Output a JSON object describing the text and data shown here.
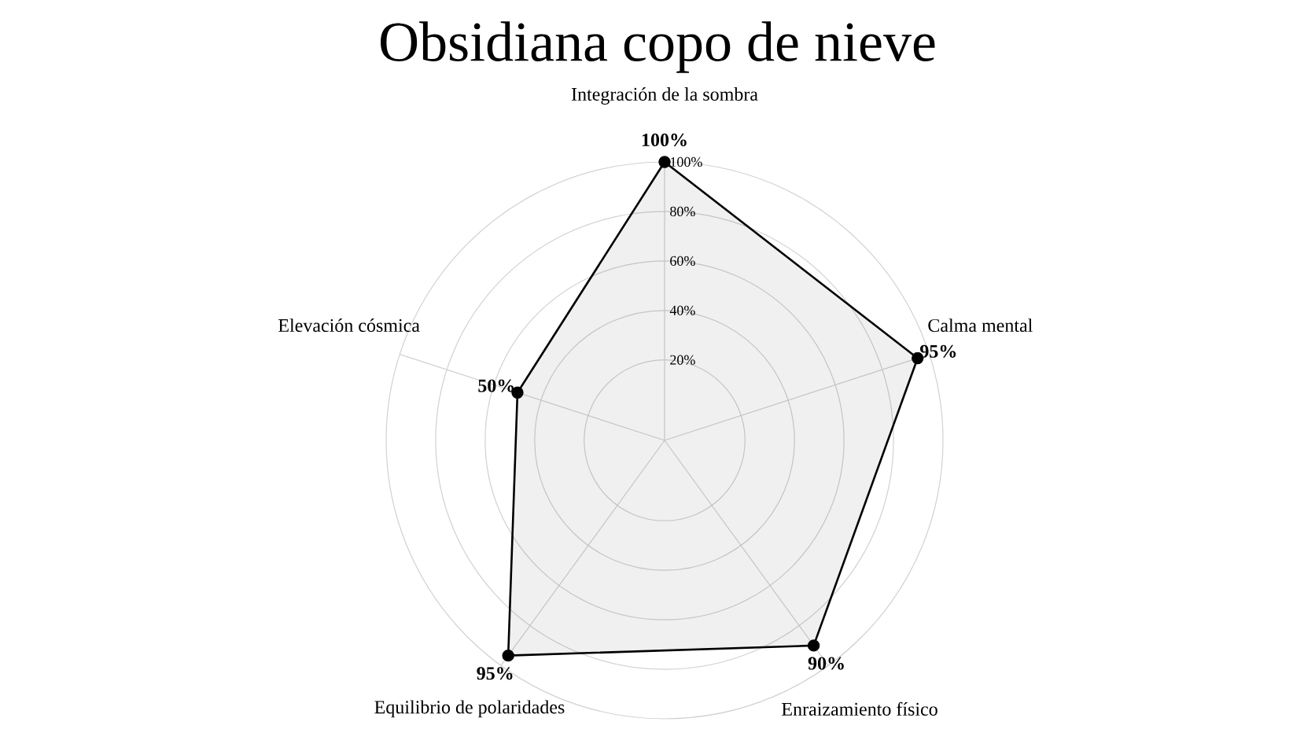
{
  "chart_data": {
    "type": "radar",
    "title": "Obsidiana copo de nieve",
    "categories": [
      "Integración de la sombra",
      "Calma mental",
      "Enraizamiento físico",
      "Equilibrio de polaridades",
      "Elevación cósmica"
    ],
    "series": [
      {
        "color": "#000000",
        "values": [
          100,
          95,
          90,
          95,
          50
        ],
        "value_labels": [
          "100%",
          "95%",
          "90%",
          "95%",
          "50%"
        ]
      }
    ],
    "ylim": [
      -12.5,
      100
    ],
    "yticks": [
      {
        "value": 20,
        "label": "20%"
      },
      {
        "value": 40,
        "label": "40%"
      },
      {
        "value": 60,
        "label": "60%"
      },
      {
        "value": 80,
        "label": "80%"
      },
      {
        "value": 100,
        "label": "100%"
      }
    ],
    "grid": true,
    "marker": "circle",
    "line_style": "solid"
  }
}
